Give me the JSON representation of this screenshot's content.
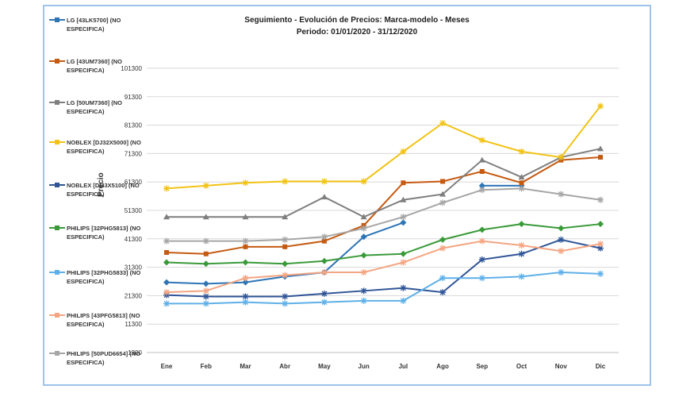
{
  "chart_data": {
    "type": "line",
    "title": [
      "Seguimiento - Evolución de Precios: Marca-modelo - Meses",
      "Periodo: 01/01/2020  -  31/12/2020"
    ],
    "xlabel": "",
    "ylabel": "Precio",
    "ylim": [
      1300,
      101300
    ],
    "y_ticks": [
      "101300",
      "91300",
      "81300",
      "71300",
      "61300",
      "51300",
      "41300",
      "31300",
      "21300",
      "11300",
      "1300"
    ],
    "categories": [
      "Ene",
      "Feb",
      "Mar",
      "Abr",
      "May",
      "Jun",
      "Jul",
      "Ago",
      "Sep",
      "Oct",
      "Nov",
      "Dic"
    ],
    "grid": true,
    "legend_position": "left",
    "series": [
      {
        "name": "LG [43LK5700] (NO ESPECIFICA)",
        "color": "#2e75b6",
        "marker": "diamond",
        "values": [
          26000,
          25500,
          26000,
          28000,
          29500,
          42000,
          47000,
          null,
          60000,
          60000,
          null,
          null
        ]
      },
      {
        "name": "LG [43UM7360] (NO ESPECIFICA)",
        "color": "#c55a11",
        "marker": "square",
        "values": [
          36500,
          36000,
          38500,
          38500,
          40500,
          46000,
          61000,
          61500,
          65000,
          61000,
          69000,
          70000
        ]
      },
      {
        "name": "LG [50UM7360] (NO ESPECIFICA)",
        "color": "#7f7f7f",
        "marker": "triangle",
        "values": [
          49000,
          49000,
          49000,
          49000,
          56000,
          49000,
          55000,
          57000,
          69000,
          63000,
          70000,
          73000
        ]
      },
      {
        "name": "NOBLEX [DJ32X5000] (NO ESPECIFICA)",
        "color": "#f2c314",
        "marker": "star",
        "values": [
          59000,
          60000,
          61000,
          61500,
          61500,
          61500,
          72000,
          82000,
          76000,
          72000,
          70000,
          88000
        ]
      },
      {
        "name": "NOBLEX [DI43X5100] (NO ESPECIFICA)",
        "color": "#2f5597",
        "marker": "star",
        "values": [
          21500,
          21000,
          21000,
          21000,
          22000,
          23000,
          24000,
          22500,
          34000,
          36000,
          41000,
          38000
        ]
      },
      {
        "name": "PHILIPS [32PHG5813] (NO ESPECIFICA)",
        "color": "#3a9a3a",
        "marker": "diamond",
        "values": [
          33000,
          32500,
          33000,
          32500,
          33500,
          35500,
          36000,
          41000,
          44500,
          46500,
          45000,
          46500
        ]
      },
      {
        "name": "PHILIPS [32PHG5833] (NO ESPECIFICA)",
        "color": "#5fb0e8",
        "marker": "star",
        "values": [
          18500,
          18500,
          19000,
          18500,
          19000,
          19500,
          19500,
          27500,
          27500,
          28000,
          29500,
          29000
        ]
      },
      {
        "name": "PHILIPS [43PFG5813] (NO ESPECIFICA)",
        "color": "#f4a582",
        "marker": "star",
        "values": [
          22500,
          23000,
          27500,
          28500,
          29500,
          29500,
          33000,
          38000,
          40500,
          39000,
          37000,
          39500
        ]
      },
      {
        "name": "PHILIPS [50PUD6654] (NO ESPECIFICA)",
        "color": "#a6a6a6",
        "marker": "star",
        "values": [
          40500,
          40500,
          40500,
          41000,
          42000,
          45000,
          49000,
          54000,
          58500,
          59000,
          57000,
          55000
        ]
      }
    ]
  }
}
